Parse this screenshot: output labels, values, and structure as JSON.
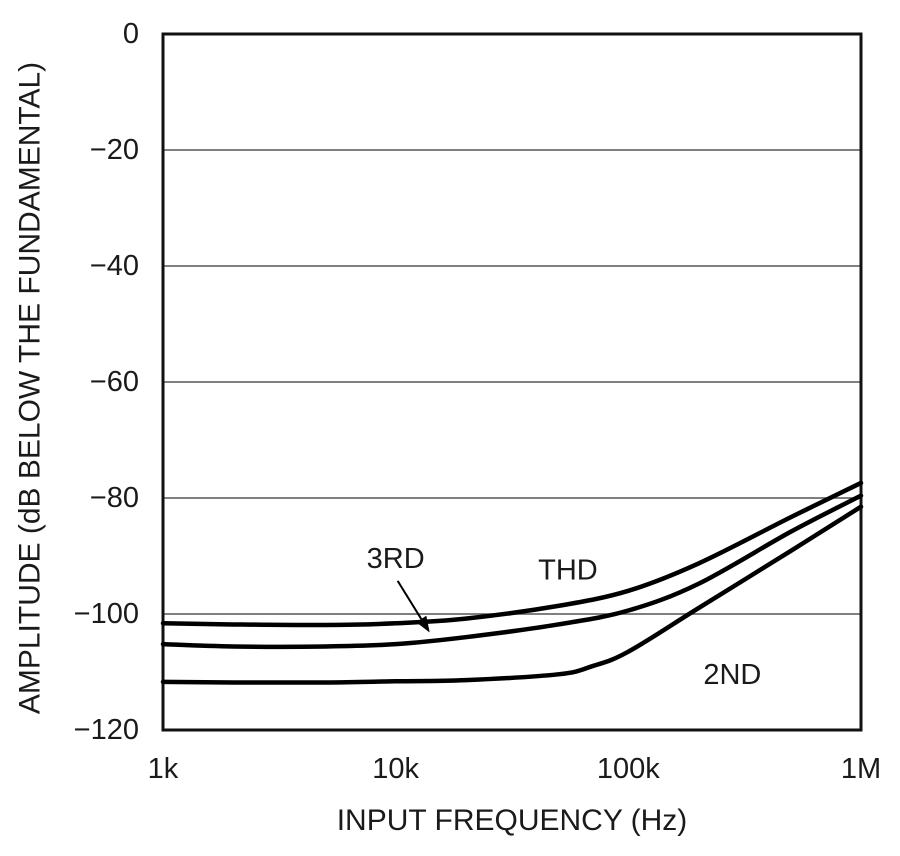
{
  "chart_data": {
    "type": "line",
    "title": "",
    "xlabel": "INPUT FREQUENCY (Hz)",
    "ylabel": "AMPLITUDE (dB BELOW THE FUNDAMENTAL)",
    "xscale": "log",
    "xlim": [
      1000,
      1000000
    ],
    "ylim": [
      -120,
      0
    ],
    "grid": "horizontal",
    "x_ticks": [
      {
        "value": 1000,
        "label": "1k"
      },
      {
        "value": 10000,
        "label": "10k"
      },
      {
        "value": 100000,
        "label": "100k"
      },
      {
        "value": 1000000,
        "label": "1M"
      }
    ],
    "y_ticks": [
      {
        "value": 0,
        "label": "0"
      },
      {
        "value": -20,
        "label": "-20"
      },
      {
        "value": -40,
        "label": "-40"
      },
      {
        "value": -60,
        "label": "-60"
      },
      {
        "value": -80,
        "label": "-80"
      },
      {
        "value": -100,
        "label": "-100"
      },
      {
        "value": -120,
        "label": "-120"
      }
    ],
    "series": [
      {
        "name": "THD",
        "x": [
          1000,
          2000,
          5000,
          10000,
          20000,
          50000,
          100000,
          200000,
          500000,
          1000000
        ],
        "y": [
          -101.6,
          -101.8,
          -101.9,
          -101.6,
          -100.8,
          -98.6,
          -96.0,
          -91.3,
          -83.3,
          -77.4
        ]
      },
      {
        "name": "3RD",
        "x": [
          1000,
          2000,
          5000,
          10000,
          20000,
          50000,
          100000,
          200000,
          500000,
          1000000
        ],
        "y": [
          -105.2,
          -105.6,
          -105.6,
          -105.2,
          -104.0,
          -101.8,
          -99.4,
          -94.8,
          -85.8,
          -79.6
        ]
      },
      {
        "name": "2ND",
        "x": [
          1000,
          2000,
          5000,
          10000,
          20000,
          50000,
          70000,
          100000,
          200000,
          500000,
          1000000
        ],
        "y": [
          -111.7,
          -111.8,
          -111.8,
          -111.6,
          -111.4,
          -110.4,
          -109.0,
          -106.5,
          -99.0,
          -89.1,
          -81.5
        ]
      }
    ],
    "annotations": [
      {
        "text": "THD",
        "series": "THD",
        "x": 55000,
        "y": -92.5
      },
      {
        "text": "3RD",
        "series": "3RD",
        "x": 10000,
        "y": -90.5,
        "arrow": true,
        "arrow_target": {
          "x": 14000,
          "y": -103.2
        }
      },
      {
        "text": "2ND",
        "series": "2ND",
        "x": 280000,
        "y": -110.5
      }
    ]
  }
}
